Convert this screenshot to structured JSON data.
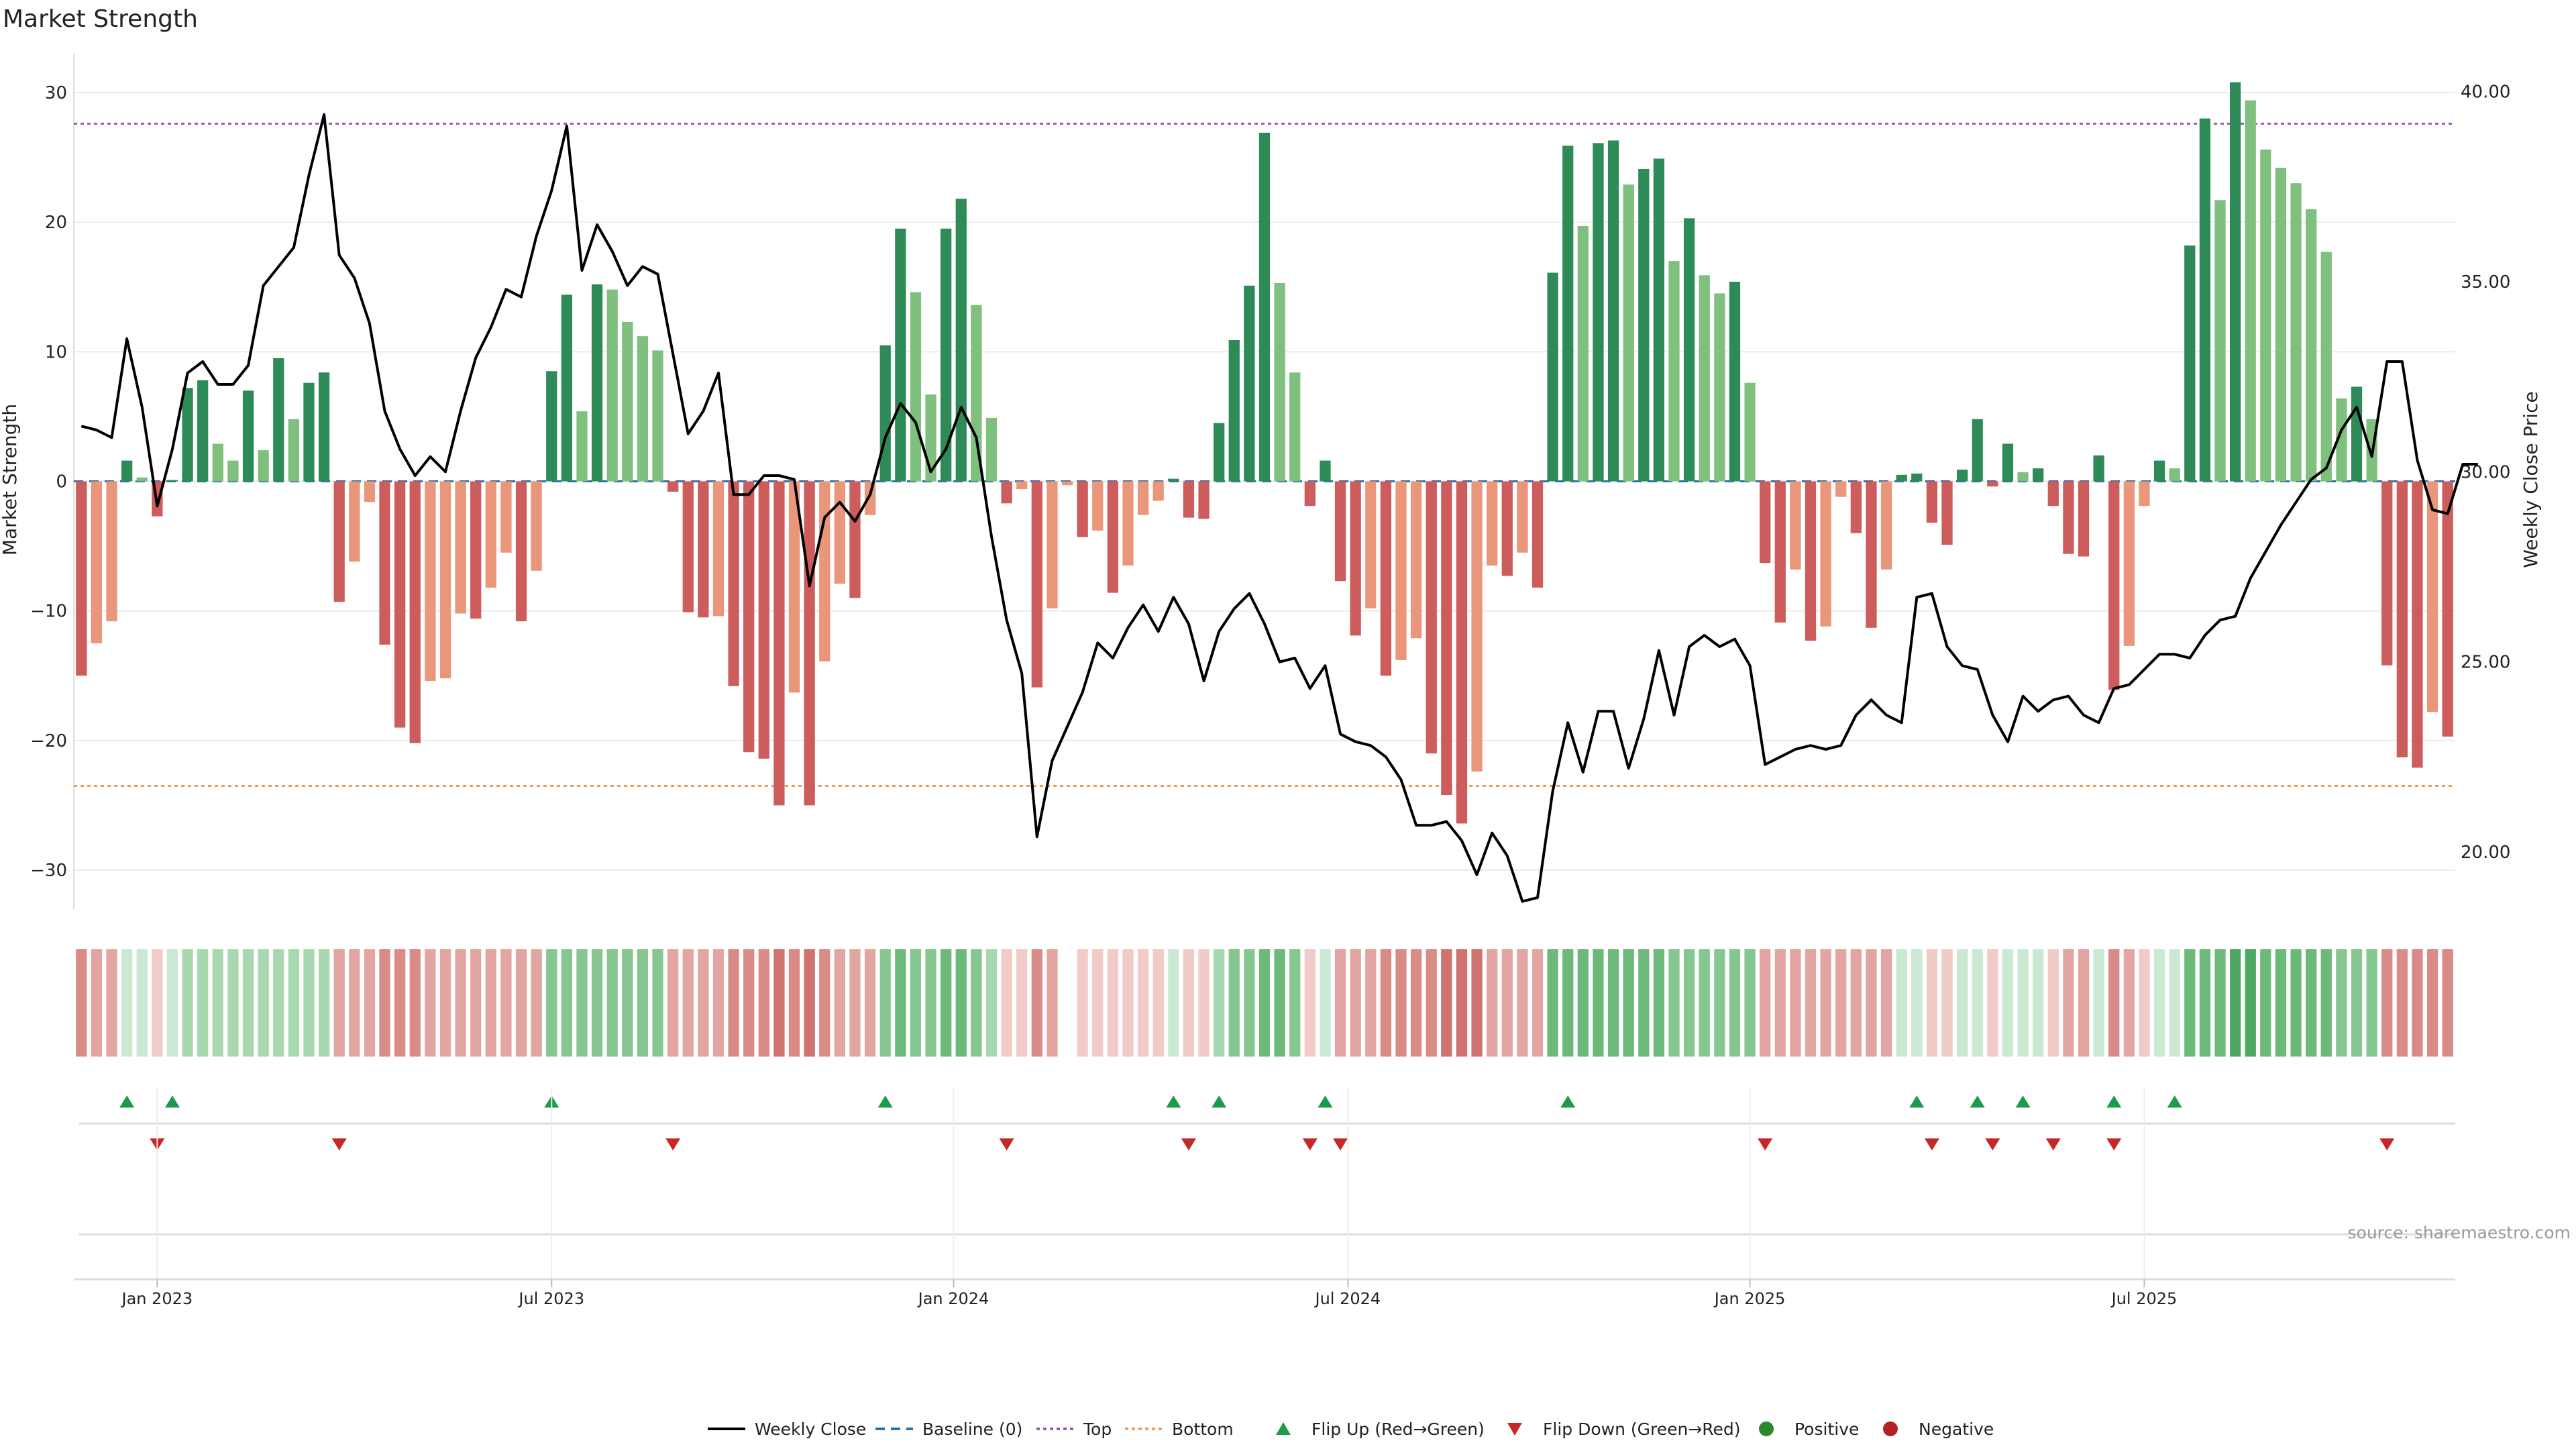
{
  "chart_data": {
    "type": "bar",
    "title": "Market Strength",
    "ylabel_left": "Market Strength",
    "ylabel_right": "Weekly Close Price",
    "source": "source: sharemaestro.com",
    "ylim_left": [
      -33,
      33
    ],
    "ylim_right": [
      18.5,
      41.0
    ],
    "yticks_left": [
      30,
      20,
      10,
      0,
      -10,
      -20,
      -30
    ],
    "yticks_left_labels": [
      "30",
      "20",
      "10",
      "0",
      "−10",
      "−20",
      "−30"
    ],
    "yticks_right": [
      40,
      35,
      30,
      25,
      20
    ],
    "yticks_right_labels": [
      "40.00",
      "35.00",
      "30.00",
      "25.00",
      "20.00"
    ],
    "top_line": 27.6,
    "bottom_line": -23.5,
    "x_start": "2022-11-28",
    "x_end": "2025-10-27",
    "x_ticks": [
      {
        "label": "Jan 2023",
        "week": 5
      },
      {
        "label": "Jul 2023",
        "week": 31
      },
      {
        "label": "Jan 2024",
        "week": 57.5
      },
      {
        "label": "Jul 2024",
        "week": 83.5
      },
      {
        "label": "Jan 2025",
        "week": 110
      },
      {
        "label": "Jul 2025",
        "week": 136
      }
    ],
    "strength": [
      -15,
      -12.5,
      -10.8,
      1.6,
      0.3,
      -2.7,
      0.1,
      7.2,
      7.8,
      2.9,
      1.6,
      7.0,
      2.4,
      9.5,
      4.8,
      7.6,
      8.4,
      -9.3,
      -6.2,
      -1.6,
      -12.6,
      -19.0,
      -20.2,
      -15.4,
      -15.2,
      -10.2,
      -10.6,
      -8.2,
      -5.5,
      -10.8,
      -6.9,
      8.5,
      14.4,
      5.4,
      15.2,
      14.8,
      12.3,
      11.2,
      10.1,
      -0.8,
      -10.1,
      -10.5,
      -10.4,
      -15.8,
      -20.9,
      -21.4,
      -25.0,
      -16.3,
      -25.0,
      -13.9,
      -7.9,
      -9.0,
      -2.6,
      10.5,
      19.5,
      14.6,
      6.7,
      19.5,
      21.8,
      13.6,
      4.9,
      -1.7,
      -0.6,
      -15.9,
      -9.8,
      -0.3,
      -4.3,
      -3.8,
      -8.6,
      -6.5,
      -2.6,
      -1.5,
      0.2,
      -2.8,
      -2.9,
      4.5,
      10.9,
      15.1,
      26.9,
      15.3,
      8.4,
      -1.9,
      1.6,
      -7.7,
      -11.9,
      -9.8,
      -15.0,
      -13.8,
      -12.1,
      -21.0,
      -24.2,
      -26.4,
      -22.4,
      -6.5,
      -7.3,
      -5.5,
      -8.2,
      16.1,
      25.9,
      19.7,
      26.1,
      26.3,
      22.9,
      24.1,
      24.9,
      17.0,
      20.3,
      15.9,
      14.5,
      15.4,
      7.6,
      -6.3,
      -10.9,
      -6.8,
      -12.3,
      -11.2,
      -1.2,
      -4.0,
      -11.3,
      -6.8,
      0.5,
      0.6,
      -3.2,
      -4.9,
      0.9,
      4.8,
      -0.4,
      2.9,
      0.7,
      1.0,
      -1.9,
      -5.6,
      -5.8,
      2.0,
      -16.1,
      -12.7,
      -1.9,
      1.6,
      1.0,
      18.2,
      28.0,
      21.7,
      30.8,
      29.4,
      25.6,
      24.2,
      23.0,
      21.0,
      17.7,
      6.4,
      7.3,
      4.8,
      -14.2,
      -21.3,
      -22.1,
      -17.8,
      -19.7
    ],
    "price": [
      31.2,
      31.1,
      30.9,
      33.5,
      31.7,
      29.1,
      30.6,
      32.6,
      32.9,
      32.3,
      32.3,
      32.8,
      34.9,
      35.4,
      35.9,
      37.8,
      39.4,
      35.7,
      35.1,
      33.9,
      31.6,
      30.6,
      29.9,
      30.4,
      30.0,
      31.6,
      33.0,
      33.8,
      34.8,
      34.6,
      36.2,
      37.4,
      39.1,
      35.3,
      36.5,
      35.8,
      34.9,
      35.4,
      35.2,
      33.1,
      31.0,
      31.6,
      32.6,
      29.4,
      29.4,
      29.9,
      29.9,
      29.8,
      27.0,
      28.8,
      29.2,
      28.7,
      29.4,
      30.9,
      31.8,
      31.3,
      30.0,
      30.6,
      31.7,
      30.9,
      28.3,
      26.1,
      24.7,
      20.4,
      22.4,
      23.3,
      24.2,
      25.5,
      25.1,
      25.9,
      26.5,
      25.8,
      26.7,
      26.0,
      24.5,
      25.8,
      26.4,
      26.8,
      26.0,
      25.0,
      25.1,
      24.3,
      24.9,
      23.1,
      22.9,
      22.8,
      22.5,
      21.9,
      20.7,
      20.7,
      20.8,
      20.3,
      19.4,
      20.5,
      19.9,
      18.7,
      18.8,
      21.6,
      23.4,
      22.1,
      23.7,
      23.7,
      22.2,
      23.5,
      25.3,
      23.6,
      25.4,
      25.7,
      25.4,
      25.6,
      24.9,
      22.3,
      22.5,
      22.7,
      22.8,
      22.7,
      22.8,
      23.6,
      24.0,
      23.6,
      23.4,
      26.7,
      26.8,
      25.4,
      24.9,
      24.8,
      23.6,
      22.9,
      24.1,
      23.7,
      24.0,
      24.1,
      23.6,
      23.4,
      24.3,
      24.4,
      24.8,
      25.2,
      25.2,
      25.1,
      25.7,
      26.1,
      26.2,
      27.2,
      27.9,
      28.6,
      29.2,
      29.8,
      30.1,
      31.1,
      31.7,
      30.4,
      32.9,
      32.9,
      30.3,
      29.0,
      28.9,
      30.2,
      30.2
    ],
    "strip_bars": [
      {
        "tone": "red",
        "level": 3
      },
      {
        "tone": "red",
        "level": 2
      },
      {
        "tone": "red",
        "level": 2
      },
      {
        "tone": "green",
        "level": 1
      },
      {
        "tone": "green",
        "level": 1
      },
      {
        "tone": "red",
        "level": 1
      },
      {
        "tone": "green",
        "level": 1
      },
      {
        "tone": "green",
        "level": 2
      },
      {
        "tone": "green",
        "level": 2
      },
      {
        "tone": "green",
        "level": 2
      },
      {
        "tone": "green",
        "level": 2
      },
      {
        "tone": "green",
        "level": 2
      },
      {
        "tone": "green",
        "level": 2
      },
      {
        "tone": "green",
        "level": 2
      },
      {
        "tone": "green",
        "level": 2
      },
      {
        "tone": "green",
        "level": 2
      },
      {
        "tone": "green",
        "level": 2
      },
      {
        "tone": "red",
        "level": 2
      },
      {
        "tone": "red",
        "level": 2
      },
      {
        "tone": "red",
        "level": 2
      },
      {
        "tone": "red",
        "level": 3
      },
      {
        "tone": "red",
        "level": 3
      },
      {
        "tone": "red",
        "level": 3
      },
      {
        "tone": "red",
        "level": 2
      },
      {
        "tone": "red",
        "level": 2
      },
      {
        "tone": "red",
        "level": 2
      },
      {
        "tone": "red",
        "level": 2
      },
      {
        "tone": "red",
        "level": 2
      },
      {
        "tone": "red",
        "level": 2
      },
      {
        "tone": "red",
        "level": 2
      },
      {
        "tone": "red",
        "level": 2
      },
      {
        "tone": "green",
        "level": 3
      },
      {
        "tone": "green",
        "level": 3
      },
      {
        "tone": "green",
        "level": 3
      },
      {
        "tone": "green",
        "level": 3
      },
      {
        "tone": "green",
        "level": 3
      },
      {
        "tone": "green",
        "level": 3
      },
      {
        "tone": "green",
        "level": 3
      },
      {
        "tone": "green",
        "level": 3
      },
      {
        "tone": "red",
        "level": 2
      },
      {
        "tone": "red",
        "level": 2
      },
      {
        "tone": "red",
        "level": 2
      },
      {
        "tone": "red",
        "level": 2
      },
      {
        "tone": "red",
        "level": 3
      },
      {
        "tone": "red",
        "level": 3
      },
      {
        "tone": "red",
        "level": 3
      },
      {
        "tone": "red",
        "level": 4
      },
      {
        "tone": "red",
        "level": 3
      },
      {
        "tone": "red",
        "level": 4
      },
      {
        "tone": "red",
        "level": 3
      },
      {
        "tone": "red",
        "level": 2
      },
      {
        "tone": "red",
        "level": 2
      },
      {
        "tone": "red",
        "level": 2
      },
      {
        "tone": "green",
        "level": 3
      },
      {
        "tone": "green",
        "level": 4
      },
      {
        "tone": "green",
        "level": 3
      },
      {
        "tone": "green",
        "level": 3
      },
      {
        "tone": "green",
        "level": 4
      },
      {
        "tone": "green",
        "level": 4
      },
      {
        "tone": "green",
        "level": 3
      },
      {
        "tone": "green",
        "level": 2
      },
      {
        "tone": "red",
        "level": 1
      },
      {
        "tone": "red",
        "level": 1
      },
      {
        "tone": "red",
        "level": 3
      },
      {
        "tone": "red",
        "level": 2
      },
      {
        "tone": "none",
        "level": 0
      },
      {
        "tone": "red",
        "level": 1
      },
      {
        "tone": "red",
        "level": 1
      },
      {
        "tone": "red",
        "level": 1
      },
      {
        "tone": "red",
        "level": 1
      },
      {
        "tone": "red",
        "level": 1
      },
      {
        "tone": "red",
        "level": 1
      },
      {
        "tone": "green",
        "level": 1
      },
      {
        "tone": "red",
        "level": 1
      },
      {
        "tone": "red",
        "level": 1
      },
      {
        "tone": "green",
        "level": 2
      },
      {
        "tone": "green",
        "level": 3
      },
      {
        "tone": "green",
        "level": 3
      },
      {
        "tone": "green",
        "level": 4
      },
      {
        "tone": "green",
        "level": 4
      },
      {
        "tone": "green",
        "level": 3
      },
      {
        "tone": "red",
        "level": 1
      },
      {
        "tone": "green",
        "level": 1
      },
      {
        "tone": "red",
        "level": 2
      },
      {
        "tone": "red",
        "level": 2
      },
      {
        "tone": "red",
        "level": 2
      },
      {
        "tone": "red",
        "level": 3
      },
      {
        "tone": "red",
        "level": 3
      },
      {
        "tone": "red",
        "level": 3
      },
      {
        "tone": "red",
        "level": 3
      },
      {
        "tone": "red",
        "level": 4
      },
      {
        "tone": "red",
        "level": 4
      },
      {
        "tone": "red",
        "level": 4
      },
      {
        "tone": "red",
        "level": 2
      },
      {
        "tone": "red",
        "level": 2
      },
      {
        "tone": "red",
        "level": 2
      },
      {
        "tone": "red",
        "level": 2
      },
      {
        "tone": "green",
        "level": 4
      },
      {
        "tone": "green",
        "level": 4
      },
      {
        "tone": "green",
        "level": 4
      },
      {
        "tone": "green",
        "level": 4
      },
      {
        "tone": "green",
        "level": 4
      },
      {
        "tone": "green",
        "level": 4
      },
      {
        "tone": "green",
        "level": 4
      },
      {
        "tone": "green",
        "level": 4
      },
      {
        "tone": "green",
        "level": 3
      },
      {
        "tone": "green",
        "level": 3
      },
      {
        "tone": "green",
        "level": 3
      },
      {
        "tone": "green",
        "level": 3
      },
      {
        "tone": "green",
        "level": 3
      },
      {
        "tone": "green",
        "level": 3
      },
      {
        "tone": "red",
        "level": 2
      },
      {
        "tone": "red",
        "level": 2
      },
      {
        "tone": "red",
        "level": 2
      },
      {
        "tone": "red",
        "level": 2
      },
      {
        "tone": "red",
        "level": 2
      },
      {
        "tone": "red",
        "level": 2
      },
      {
        "tone": "red",
        "level": 2
      },
      {
        "tone": "red",
        "level": 2
      },
      {
        "tone": "red",
        "level": 2
      },
      {
        "tone": "green",
        "level": 1
      },
      {
        "tone": "green",
        "level": 1
      },
      {
        "tone": "red",
        "level": 1
      },
      {
        "tone": "red",
        "level": 1
      },
      {
        "tone": "green",
        "level": 1
      },
      {
        "tone": "green",
        "level": 1
      },
      {
        "tone": "red",
        "level": 1
      },
      {
        "tone": "green",
        "level": 1
      },
      {
        "tone": "green",
        "level": 1
      },
      {
        "tone": "green",
        "level": 1
      },
      {
        "tone": "red",
        "level": 1
      },
      {
        "tone": "red",
        "level": 2
      },
      {
        "tone": "red",
        "level": 2
      },
      {
        "tone": "green",
        "level": 1
      },
      {
        "tone": "red",
        "level": 3
      },
      {
        "tone": "red",
        "level": 2
      },
      {
        "tone": "red",
        "level": 1
      },
      {
        "tone": "green",
        "level": 1
      },
      {
        "tone": "green",
        "level": 1
      },
      {
        "tone": "green",
        "level": 4
      },
      {
        "tone": "green",
        "level": 4
      },
      {
        "tone": "green",
        "level": 4
      },
      {
        "tone": "green",
        "level": 5
      },
      {
        "tone": "green",
        "level": 5
      },
      {
        "tone": "green",
        "level": 4
      },
      {
        "tone": "green",
        "level": 4
      },
      {
        "tone": "green",
        "level": 4
      },
      {
        "tone": "green",
        "level": 4
      },
      {
        "tone": "green",
        "level": 4
      },
      {
        "tone": "green",
        "level": 3
      },
      {
        "tone": "green",
        "level": 3
      },
      {
        "tone": "green",
        "level": 3
      },
      {
        "tone": "red",
        "level": 3
      },
      {
        "tone": "red",
        "level": 3
      },
      {
        "tone": "red",
        "level": 3
      },
      {
        "tone": "red",
        "level": 3
      },
      {
        "tone": "red",
        "level": 3
      }
    ],
    "flip_up_weeks": [
      3,
      6,
      31,
      53,
      72,
      75,
      82,
      98,
      121,
      125,
      128,
      134,
      138
    ],
    "flip_down_weeks": [
      5,
      17,
      39,
      61,
      73,
      81,
      83,
      111,
      122,
      126,
      130,
      134,
      152
    ],
    "legend": [
      "Weekly Close",
      "Baseline (0)",
      "Top",
      "Bottom",
      "Flip Up (Red→Green)",
      "Flip Down (Green→Red)",
      "Positive",
      "Negative"
    ],
    "colors": {
      "pos_dark": "#2e8b57",
      "pos_light": "#7fc07f",
      "neg_dark": "#cd5c5c",
      "neg_light": "#e9967a",
      "price": "#000000",
      "baseline": "#2e6fa7",
      "top": "#9b59b6",
      "bottom": "#f39c5a",
      "flip_up": "#1e9a4b",
      "flip_down": "#c62828",
      "positive": "#2a8a2a",
      "negative": "#b22222",
      "grid": "#ebebeb",
      "text": "#222222"
    }
  }
}
